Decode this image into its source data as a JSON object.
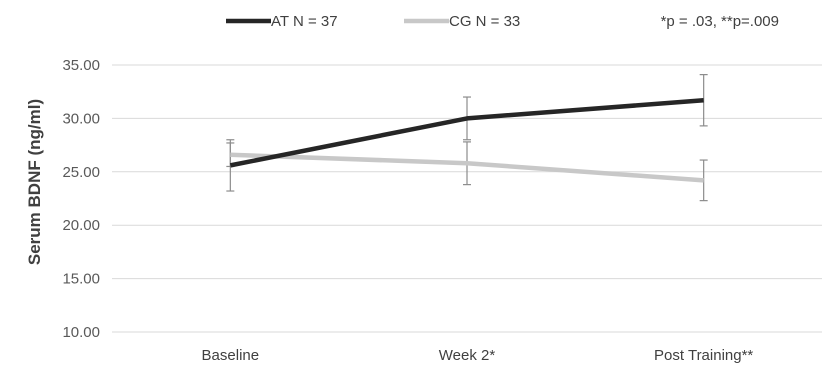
{
  "chart_data": {
    "type": "line",
    "categories": [
      "Baseline",
      "Week 2*",
      "Post Training**"
    ],
    "series": [
      {
        "name": "AT N = 37",
        "values": [
          25.6,
          30.0,
          31.7
        ],
        "errors": [
          2.4,
          2.0,
          2.4
        ],
        "color": "#262626"
      },
      {
        "name": "CG N = 33",
        "values": [
          26.6,
          25.8,
          24.2
        ],
        "errors": [
          1.1,
          2.0,
          1.9
        ],
        "color": "#c8c8c8"
      }
    ],
    "ylabel": "Serum BDNF (ng/ml)",
    "xlabel": "",
    "ylim": [
      10,
      35
    ],
    "yticks": [
      "10.00",
      "15.00",
      "20.00",
      "25.00",
      "30.00",
      "35.00"
    ],
    "annotation": "*p = .03, **p=.009",
    "grid": true,
    "legend_position": "top"
  }
}
